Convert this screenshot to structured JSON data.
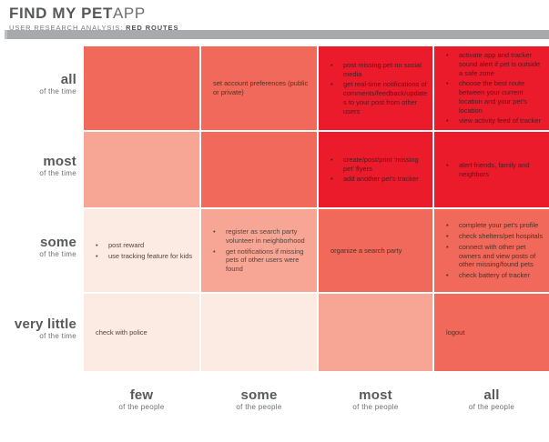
{
  "header": {
    "title_main": "FIND MY PET",
    "title_light": "APP",
    "subtitle_prefix": "USER RESEARCH ANALYSIS: ",
    "subtitle_bold": "RED ROUTES"
  },
  "colors": {
    "intensity_0": "#fcebe2",
    "intensity_1": "#f7a695",
    "intensity_2": "#f0695a",
    "intensity_3": "#eb1b2c",
    "divider_gray": "#a7a9ac"
  },
  "y_axis": {
    "sublabel": "of the time",
    "categories": [
      "all",
      "most",
      "some",
      "very little"
    ]
  },
  "x_axis": {
    "sublabel": "of the people",
    "categories": [
      "few",
      "some",
      "most",
      "all"
    ]
  },
  "chart_data": {
    "type": "heatmap",
    "title": "FIND MY PET APP",
    "subtitle": "USER RESEARCH ANALYSIS: RED ROUTES",
    "x_categories": [
      "few of the people",
      "some of the people",
      "most of the people",
      "all of the people"
    ],
    "y_categories": [
      "all of the time",
      "most of the time",
      "some of the time",
      "very little of the time"
    ],
    "intensity_scale": [
      "#fcebe2",
      "#f7a695",
      "#f0695a",
      "#eb1b2c"
    ],
    "legend_note": "intensity 0 = lightest (low priority), 3 = red route (highest priority)",
    "cells": [
      {
        "y": "all of the time",
        "x": "few of the people",
        "intensity": 2,
        "bulleted": false,
        "items": []
      },
      {
        "y": "all of the time",
        "x": "some of the people",
        "intensity": 2,
        "bulleted": false,
        "items": [
          "set account preferences (public or private)"
        ]
      },
      {
        "y": "all of the time",
        "x": "most of the people",
        "intensity": 3,
        "bulleted": true,
        "items": [
          "post missing pet on social media",
          "get real-time notifications of comments/feedback/updates to your post from other users"
        ]
      },
      {
        "y": "all of the time",
        "x": "all of the people",
        "intensity": 3,
        "bulleted": true,
        "items": [
          "activate app and tracker sound alert if pet is outside a safe zone",
          "choose the best route between your current location and your pet's location",
          "view activity feed of tracker"
        ]
      },
      {
        "y": "most of the time",
        "x": "few of the people",
        "intensity": 1,
        "bulleted": false,
        "items": []
      },
      {
        "y": "most of the time",
        "x": "some of the people",
        "intensity": 2,
        "bulleted": false,
        "items": []
      },
      {
        "y": "most of the time",
        "x": "most of the people",
        "intensity": 3,
        "bulleted": true,
        "items": [
          "create/post/print 'missing pet' flyers",
          "add another pet's tracker"
        ]
      },
      {
        "y": "most of the time",
        "x": "all of the people",
        "intensity": 3,
        "bulleted": true,
        "items": [
          "alert friends, family and neighbors"
        ]
      },
      {
        "y": "some of the time",
        "x": "few of the people",
        "intensity": 0,
        "bulleted": true,
        "items": [
          "post reward",
          "use tracking feature for kids"
        ]
      },
      {
        "y": "some of the time",
        "x": "some of the people",
        "intensity": 1,
        "bulleted": true,
        "items": [
          "register as search party volunteer in neighborhood",
          "get notifications if missing pets of other users were found"
        ]
      },
      {
        "y": "some of the time",
        "x": "most of the people",
        "intensity": 2,
        "bulleted": false,
        "items": [
          "organize a search party"
        ]
      },
      {
        "y": "some of the time",
        "x": "all of the people",
        "intensity": 2,
        "bulleted": true,
        "items": [
          "complete your pet's profile",
          "check shelters/pet hospitals",
          "connect with other pet owners and view posts of other missing/found pets",
          "check battery of tracker"
        ]
      },
      {
        "y": "very little of the time",
        "x": "few of the people",
        "intensity": 0,
        "bulleted": false,
        "items": [
          "check with police"
        ]
      },
      {
        "y": "very little of the time",
        "x": "some of the people",
        "intensity": 0,
        "bulleted": false,
        "items": []
      },
      {
        "y": "very little of the time",
        "x": "most of the people",
        "intensity": 1,
        "bulleted": false,
        "items": []
      },
      {
        "y": "very little of the time",
        "x": "all of the people",
        "intensity": 2,
        "bulleted": false,
        "items": [
          "logout"
        ]
      }
    ]
  }
}
